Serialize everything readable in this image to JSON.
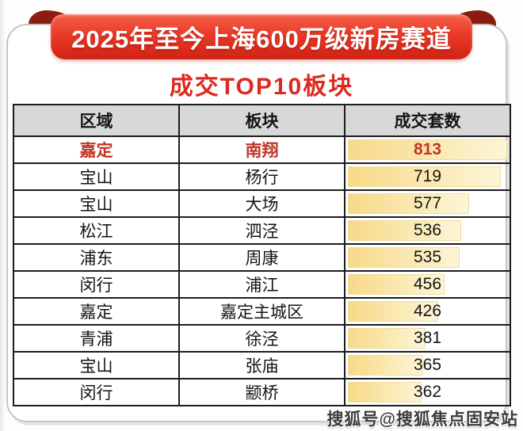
{
  "banner": {
    "title": "2025年至今上海600万级新房赛道"
  },
  "subtitle": "成交TOP10板块",
  "table": {
    "headers": {
      "region": "区域",
      "block": "板块",
      "count": "成交套数"
    },
    "rows": [
      {
        "region": "嘉定",
        "block": "南翔",
        "count": "813",
        "bar_pct": 100,
        "highlight": true
      },
      {
        "region": "宝山",
        "block": "杨行",
        "count": "719",
        "bar_pct": 96,
        "highlight": false
      },
      {
        "region": "宝山",
        "block": "大场",
        "count": "577",
        "bar_pct": 77,
        "highlight": false
      },
      {
        "region": "松江",
        "block": "泗泾",
        "count": "536",
        "bar_pct": 72,
        "highlight": false
      },
      {
        "region": "浦东",
        "block": "周康",
        "count": "535",
        "bar_pct": 71,
        "highlight": false
      },
      {
        "region": "闵行",
        "block": "浦江",
        "count": "456",
        "bar_pct": 62,
        "highlight": false
      },
      {
        "region": "嘉定",
        "block": "嘉定主城区",
        "count": "426",
        "bar_pct": 58,
        "highlight": false
      },
      {
        "region": "青浦",
        "block": "徐泾",
        "count": "381",
        "bar_pct": 50,
        "highlight": false
      },
      {
        "region": "宝山",
        "block": "张庙",
        "count": "365",
        "bar_pct": 49,
        "highlight": false
      },
      {
        "region": "闵行",
        "block": "颛桥",
        "count": "362",
        "bar_pct": 48,
        "highlight": false
      }
    ]
  },
  "watermark": "搜狐号@搜狐焦点固安站",
  "colors": {
    "ribbon_red": "#e23225",
    "ribbon_fold_dark_red": "#8a1d10",
    "subtitle_red": "#dd2a1e",
    "header_gray": "#d8d8d8",
    "highlight_red": "#c23527",
    "bar_gold": "#f7d988",
    "bar_pale": "#fdf5d8",
    "border_black": "#1d1d1d"
  },
  "chart_data": {
    "type": "table",
    "title": "2025年至今上海600万级新房赛道",
    "subtitle": "成交TOP10板块",
    "columns": [
      "区域",
      "板块",
      "成交套数"
    ],
    "rows": [
      [
        "嘉定",
        "南翔",
        813
      ],
      [
        "宝山",
        "杨行",
        719
      ],
      [
        "宝山",
        "大场",
        577
      ],
      [
        "松江",
        "泗泾",
        536
      ],
      [
        "浦东",
        "周康",
        535
      ],
      [
        "闵行",
        "浦江",
        456
      ],
      [
        "嘉定",
        "嘉定主城区",
        426
      ],
      [
        "青浦",
        "徐泾",
        381
      ],
      [
        "宝山",
        "张庙",
        365
      ],
      [
        "闵行",
        "颛桥",
        362
      ]
    ],
    "value_bars": {
      "column": "成交套数",
      "max": 813,
      "style": "gold gradient data bar, left-aligned"
    }
  }
}
